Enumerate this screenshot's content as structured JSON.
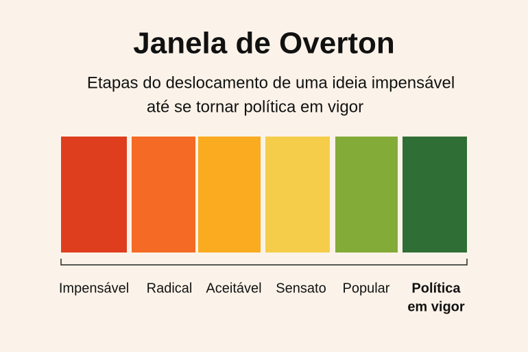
{
  "header": {
    "title": "Janela de Overton",
    "subtitle": [
      "Etapas do deslocamento de uma ideia impensável",
      "até se tornar política em vigor"
    ]
  },
  "stages": [
    {
      "label": [
        "Impensável"
      ],
      "color": "#de3e1e"
    },
    {
      "label": [
        "Radical"
      ],
      "color": "#f56a24"
    },
    {
      "label": [
        "Aceitável"
      ],
      "color": "#fbab1f"
    },
    {
      "label": [
        "Sensato"
      ],
      "color": "#f5cd4a"
    },
    {
      "label": [
        "Popular"
      ],
      "color": "#83ab38"
    },
    {
      "label": [
        "Política",
        "em vigor"
      ],
      "color": "#2f6e35"
    }
  ]
}
